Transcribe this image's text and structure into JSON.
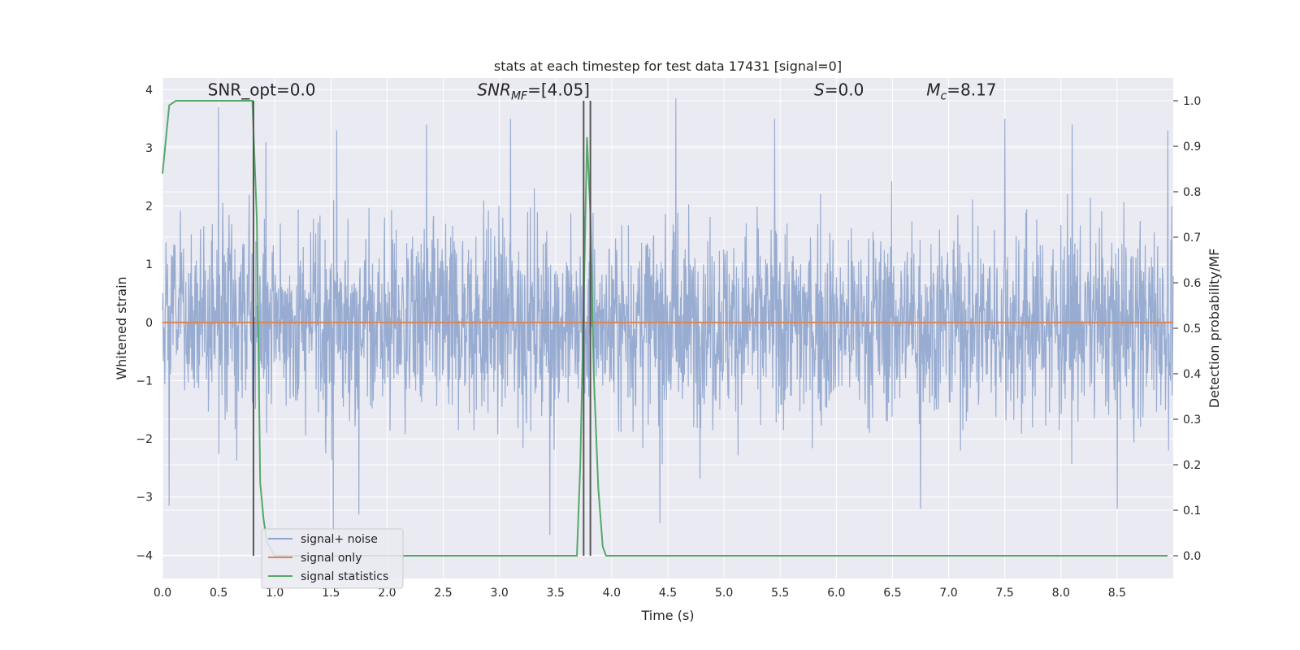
{
  "chart_data": {
    "type": "line",
    "title": "stats at each timestep for test data 17431 [signal=0]",
    "xlabel": "Time (s)",
    "ylabel_left": "Whitened strain",
    "ylabel_right": "Detection probability/MF",
    "xlim": [
      0,
      9.0
    ],
    "ylim_left": [
      -4.4,
      4.2
    ],
    "ylim_right": [
      -0.05,
      1.05
    ],
    "x_ticks": [
      0.0,
      0.5,
      1.0,
      1.5,
      2.0,
      2.5,
      3.0,
      3.5,
      4.0,
      4.5,
      5.0,
      5.5,
      6.0,
      6.5,
      7.0,
      7.5,
      8.0,
      8.5
    ],
    "x_tick_labels": [
      "0.0",
      "0.5",
      "1.0",
      "1.5",
      "2.0",
      "2.5",
      "3.0",
      "3.5",
      "4.0",
      "4.5",
      "5.0",
      "5.5",
      "6.0",
      "6.5",
      "7.0",
      "7.5",
      "8.0",
      "8.5"
    ],
    "y_ticks_left": [
      -4,
      -3,
      -2,
      -1,
      0,
      1,
      2,
      3,
      4
    ],
    "y_tick_labels_left": [
      "−4",
      "−3",
      "−2",
      "−1",
      "0",
      "1",
      "2",
      "3",
      "4"
    ],
    "y_ticks_right": [
      0.0,
      0.1,
      0.2,
      0.3,
      0.4,
      0.5,
      0.6,
      0.7,
      0.8,
      0.9,
      1.0
    ],
    "y_tick_labels_right": [
      "0.0",
      "0.1",
      "0.2",
      "0.3",
      "0.4",
      "0.5",
      "0.6",
      "0.7",
      "0.8",
      "0.9",
      "1.0"
    ],
    "grid": true,
    "legend_position": "lower-left",
    "annotations": [
      {
        "text": "SNR_opt=0.0",
        "x": 0.2,
        "y": 4.0
      },
      {
        "text": "SNR_MF=[4.05]",
        "x": 2.6,
        "y": 4.0
      },
      {
        "text": "S=0.0",
        "x": 5.6,
        "y": 4.0
      },
      {
        "text": "M_c=8.17",
        "x": 6.6,
        "y": 4.0
      }
    ],
    "vertical_lines": [
      0.81,
      3.75,
      3.81
    ],
    "vertical_line_range_right": [
      0.0,
      1.0
    ],
    "series": [
      {
        "name": "signal+ noise",
        "axis": "left",
        "color": "#8fa5cd",
        "kind": "noise",
        "typical_band": [
          -1.6,
          1.6
        ],
        "peaks": [
          {
            "x": 0.5,
            "y": 3.7
          },
          {
            "x": 0.92,
            "y": 3.1
          },
          {
            "x": 1.55,
            "y": 3.3
          },
          {
            "x": 2.35,
            "y": 3.4
          },
          {
            "x": 3.1,
            "y": 3.5
          },
          {
            "x": 4.57,
            "y": 3.85
          },
          {
            "x": 5.45,
            "y": 3.5
          },
          {
            "x": 7.5,
            "y": 3.5
          },
          {
            "x": 8.1,
            "y": 3.4
          },
          {
            "x": 8.95,
            "y": 3.3
          }
        ],
        "troughs": [
          {
            "x": 0.06,
            "y": -3.15
          },
          {
            "x": 1.52,
            "y": -3.6
          },
          {
            "x": 1.75,
            "y": -3.3
          },
          {
            "x": 3.45,
            "y": -3.65
          },
          {
            "x": 4.43,
            "y": -3.45
          },
          {
            "x": 6.75,
            "y": -3.2
          },
          {
            "x": 8.5,
            "y": -3.2
          }
        ]
      },
      {
        "name": "signal only",
        "axis": "left",
        "color": "#dd8452",
        "x": [
          0.0,
          9.0
        ],
        "y": [
          0.0,
          0.0
        ]
      },
      {
        "name": "signal statistics",
        "axis": "right",
        "color": "#55a868",
        "x": [
          0.0,
          0.06,
          0.12,
          0.2,
          0.4,
          0.6,
          0.76,
          0.8,
          0.84,
          0.87,
          0.9,
          0.93,
          1.0,
          1.2,
          2.0,
          3.0,
          3.5,
          3.69,
          3.72,
          3.75,
          3.78,
          3.81,
          3.84,
          3.88,
          3.92,
          3.95,
          4.0,
          5.0,
          6.0,
          7.0,
          8.0,
          8.2,
          8.3,
          8.95
        ],
        "y": [
          0.84,
          0.99,
          1.0,
          1.0,
          1.0,
          1.0,
          1.0,
          1.0,
          0.74,
          0.16,
          0.08,
          0.03,
          0.0,
          0.0,
          0.0,
          0.0,
          0.0,
          0.0,
          0.2,
          0.55,
          0.92,
          0.75,
          0.4,
          0.15,
          0.02,
          0.0,
          0.0,
          0.0,
          0.0,
          0.0,
          0.0,
          0.0,
          0.0,
          0.0
        ]
      }
    ]
  }
}
